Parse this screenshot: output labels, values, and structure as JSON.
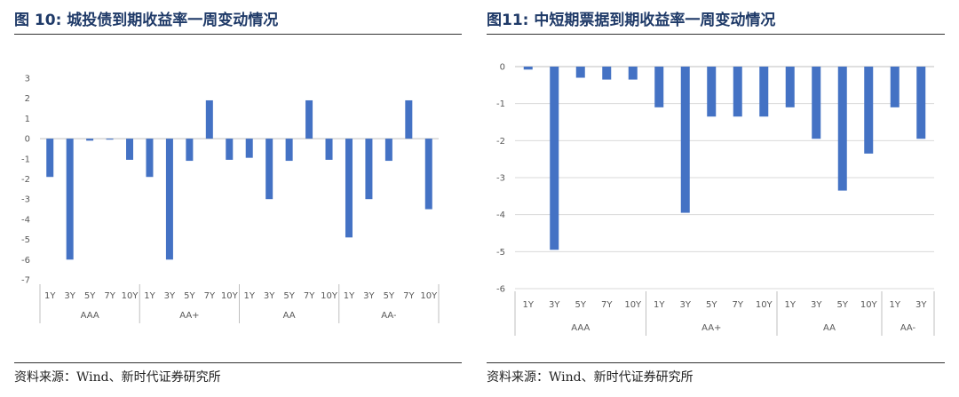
{
  "left": {
    "title": "图 10:  城投债到期收益率一周变动情况",
    "source": "资料来源：Wind、新时代证券研究所"
  },
  "right": {
    "title": "图11:    中短期票据到期收益率一周变动情况",
    "source": "资料来源：Wind、新时代证券研究所"
  },
  "colors": {
    "bar": "#4472c4",
    "axis": "#bfbfbf",
    "grid": "#d9d9d9",
    "text": "#595959",
    "title": "#1f3a68"
  },
  "chart_data": [
    {
      "type": "bar",
      "title": "",
      "xlabel": "",
      "ylabel": "",
      "ylim": [
        -7,
        3
      ],
      "yticks": [
        3,
        2,
        1,
        0,
        -1,
        -2,
        -3,
        -4,
        -5,
        -6,
        -7
      ],
      "grid": false,
      "groups": [
        {
          "name": "AAA",
          "categories": [
            "1Y",
            "3Y",
            "5Y",
            "7Y",
            "10Y"
          ],
          "values": [
            -1.9,
            -6,
            -0.1,
            -0.05,
            -1.05
          ]
        },
        {
          "name": "AA+",
          "categories": [
            "1Y",
            "3Y",
            "5Y",
            "7Y",
            "10Y"
          ],
          "values": [
            -1.9,
            -6,
            -1.1,
            1.9,
            -1.05
          ]
        },
        {
          "name": "AA",
          "categories": [
            "1Y",
            "3Y",
            "5Y",
            "7Y",
            "10Y"
          ],
          "values": [
            -0.95,
            -3,
            -1.1,
            1.9,
            -1.05
          ]
        },
        {
          "name": "AA-",
          "categories": [
            "1Y",
            "3Y",
            "5Y",
            "7Y",
            "10Y"
          ],
          "values": [
            -4.9,
            -3,
            -1.1,
            1.9,
            -3.5
          ]
        }
      ]
    },
    {
      "type": "bar",
      "title": "",
      "xlabel": "",
      "ylabel": "",
      "ylim": [
        -6,
        0
      ],
      "yticks": [
        0,
        -1,
        -2,
        -3,
        -4,
        -5,
        -6
      ],
      "grid": true,
      "groups": [
        {
          "name": "AAA",
          "categories": [
            "1Y",
            "3Y",
            "5Y",
            "7Y",
            "10Y"
          ],
          "values": [
            -0.08,
            -4.95,
            -0.3,
            -0.35,
            -0.35
          ]
        },
        {
          "name": "AA+",
          "categories": [
            "1Y",
            "3Y",
            "5Y",
            "7Y",
            "10Y"
          ],
          "values": [
            -1.1,
            -3.95,
            -1.35,
            -1.35,
            -1.35
          ]
        },
        {
          "name": "AA",
          "categories": [
            "1Y",
            "3Y",
            "5Y",
            "10Y"
          ],
          "values": [
            -1.1,
            -1.95,
            -3.35,
            -2.35
          ]
        },
        {
          "name": "AA-",
          "categories": [
            "1Y",
            "3Y"
          ],
          "values": [
            -1.1,
            -1.95
          ]
        }
      ]
    }
  ]
}
